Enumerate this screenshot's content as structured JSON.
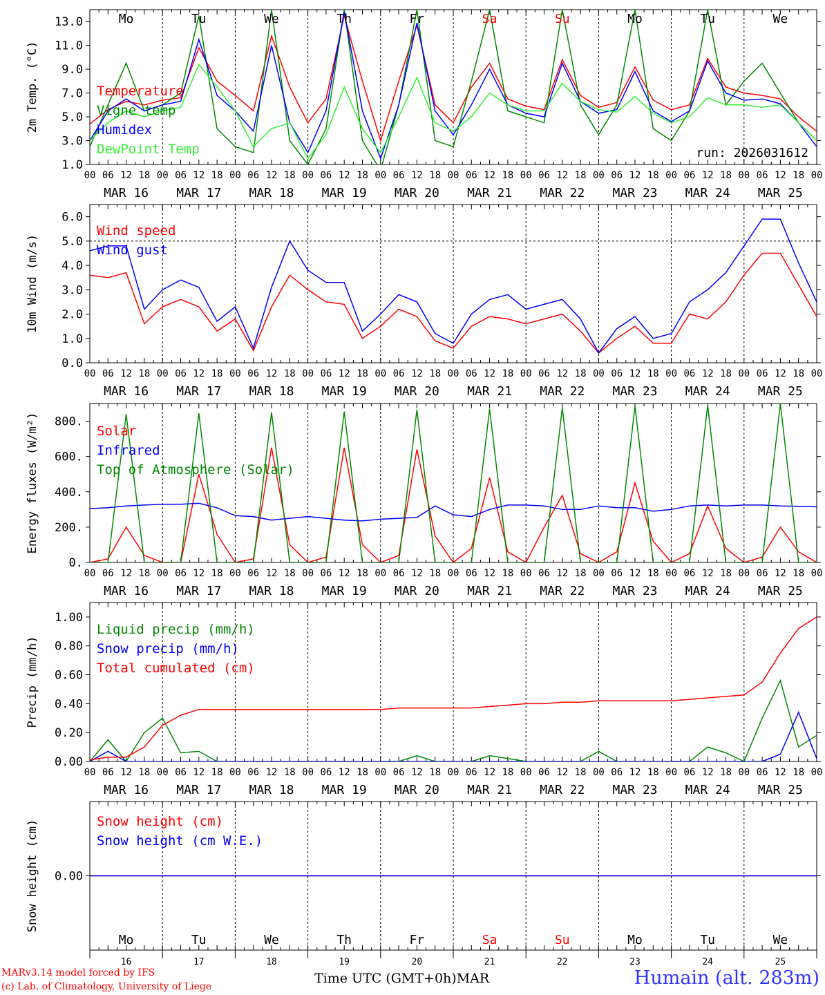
{
  "chart_data": [
    {
      "type": "line",
      "id": "temp",
      "ylabel": "2m Temp. (°C)",
      "ylim": [
        1.0,
        14.0
      ],
      "yticks": [
        "1.0",
        "3.0",
        "5.0",
        "7.0",
        "9.0",
        "11.0",
        "13.0"
      ],
      "ytick_values": [
        1,
        3,
        5,
        7,
        9,
        11,
        13
      ],
      "annotation": "run: 2026031612",
      "day_names": [
        "Mo",
        "Tu",
        "We",
        "Th",
        "Fr",
        "Sa",
        "Su",
        "Mo",
        "Tu",
        "We"
      ],
      "x_hours": [
        0,
        6,
        12,
        18,
        24,
        30,
        36,
        42,
        48,
        54,
        60,
        66,
        72,
        78,
        84,
        90,
        96,
        102,
        108,
        114,
        120,
        126,
        132,
        138,
        144,
        150,
        156,
        162,
        168,
        174,
        180,
        186,
        192,
        198,
        204,
        210,
        216,
        222,
        228,
        234,
        240
      ],
      "series": [
        {
          "name": "Temperature",
          "color": "#ff0000",
          "values": [
            4.4,
            5.6,
            6.3,
            6.0,
            6.4,
            6.6,
            10.8,
            8.0,
            6.8,
            5.5,
            11.8,
            7.5,
            4.5,
            6.5,
            13.5,
            8.0,
            3.0,
            8.0,
            12.7,
            6.0,
            4.5,
            7.5,
            9.5,
            6.5,
            5.9,
            5.6,
            9.8,
            6.8,
            5.8,
            6.2,
            9.2,
            6.4,
            5.6,
            6.0,
            9.9,
            7.5,
            7.0,
            6.8,
            6.5,
            5.0,
            3.8
          ]
        },
        {
          "name": "Vigne temp",
          "color": "#008800",
          "values": [
            2.5,
            6.0,
            9.5,
            5.5,
            6.0,
            7.0,
            13.5,
            4.0,
            2.5,
            2.0,
            14.0,
            3.0,
            1.0,
            4.0,
            14.0,
            3.0,
            0.5,
            6.0,
            14.0,
            3.0,
            2.5,
            8.0,
            14.0,
            5.5,
            5.0,
            4.5,
            14.0,
            6.0,
            3.5,
            6.0,
            14.0,
            4.0,
            3.0,
            5.5,
            14.0,
            6.0,
            8.0,
            9.5,
            7.0,
            4.5,
            3.0
          ]
        },
        {
          "name": "Humidex",
          "color": "#0000ff",
          "values": [
            3.0,
            5.5,
            6.5,
            5.5,
            6.0,
            6.3,
            11.5,
            6.8,
            5.5,
            3.8,
            11.0,
            4.5,
            2.0,
            5.5,
            13.8,
            5.5,
            1.5,
            6.0,
            12.9,
            5.5,
            3.5,
            6.0,
            9.0,
            6.0,
            5.3,
            5.0,
            9.5,
            6.3,
            5.3,
            5.6,
            8.8,
            5.5,
            4.6,
            5.5,
            9.7,
            7.0,
            6.4,
            6.5,
            6.1,
            4.5,
            2.5
          ]
        },
        {
          "name": "DewPoint Temp",
          "color": "#33ee33",
          "values": [
            3.0,
            4.5,
            5.5,
            5.0,
            5.5,
            5.8,
            9.4,
            7.5,
            5.5,
            2.5,
            4.0,
            4.5,
            1.5,
            3.5,
            7.5,
            4.0,
            2.0,
            5.0,
            8.3,
            4.5,
            3.8,
            5.0,
            7.0,
            6.0,
            5.5,
            5.5,
            7.8,
            6.3,
            5.6,
            5.4,
            6.7,
            5.3,
            4.5,
            5.0,
            6.6,
            6.0,
            6.0,
            5.8,
            6.0,
            4.5,
            3.0
          ]
        }
      ]
    },
    {
      "type": "line",
      "id": "wind",
      "ylabel": "10m Wind (m/s)",
      "ylim": [
        0.0,
        6.5
      ],
      "yticks": [
        "0.0",
        "1.0",
        "2.0",
        "3.0",
        "4.0",
        "5.0",
        "6.0"
      ],
      "ytick_values": [
        0,
        1,
        2,
        3,
        4,
        5,
        6
      ],
      "reference_line": 5.0,
      "x_hours": [
        0,
        6,
        12,
        18,
        24,
        30,
        36,
        42,
        48,
        54,
        60,
        66,
        72,
        78,
        84,
        90,
        96,
        102,
        108,
        114,
        120,
        126,
        132,
        138,
        144,
        150,
        156,
        162,
        168,
        174,
        180,
        186,
        192,
        198,
        204,
        210,
        216,
        222,
        228,
        234,
        240
      ],
      "series": [
        {
          "name": "Wind speed",
          "color": "#ff0000",
          "values": [
            3.6,
            3.5,
            3.7,
            1.6,
            2.3,
            2.6,
            2.3,
            1.3,
            1.8,
            0.5,
            2.3,
            3.6,
            3.0,
            2.5,
            2.4,
            1.0,
            1.5,
            2.2,
            1.9,
            0.9,
            0.6,
            1.5,
            1.9,
            1.8,
            1.6,
            1.8,
            2.0,
            1.3,
            0.4,
            1.0,
            1.5,
            0.8,
            0.8,
            2.0,
            1.8,
            2.5,
            3.6,
            4.5,
            4.5,
            3.2,
            1.9
          ]
        },
        {
          "name": "Wind gust",
          "color": "#0000ff",
          "values": [
            4.6,
            4.8,
            4.8,
            2.2,
            3.0,
            3.4,
            3.1,
            1.7,
            2.3,
            0.6,
            3.1,
            5.0,
            3.8,
            3.3,
            3.3,
            1.3,
            2.0,
            2.8,
            2.5,
            1.2,
            0.8,
            2.0,
            2.6,
            2.8,
            2.2,
            2.4,
            2.6,
            1.8,
            0.4,
            1.4,
            1.9,
            1.0,
            1.2,
            2.5,
            3.0,
            3.7,
            4.8,
            5.9,
            5.9,
            4.1,
            2.5
          ]
        }
      ]
    },
    {
      "type": "line",
      "id": "energy",
      "ylabel": "Energy fluxes (W/m²)",
      "ylim": [
        0,
        900
      ],
      "yticks": [
        "0.",
        "200.",
        "400.",
        "600.",
        "800."
      ],
      "ytick_values": [
        0,
        200,
        400,
        600,
        800
      ],
      "x_hours": [
        0,
        6,
        12,
        18,
        24,
        30,
        36,
        42,
        48,
        54,
        60,
        66,
        72,
        78,
        84,
        90,
        96,
        102,
        108,
        114,
        120,
        126,
        132,
        138,
        144,
        150,
        156,
        162,
        168,
        174,
        180,
        186,
        192,
        198,
        204,
        210,
        216,
        222,
        228,
        234,
        240
      ],
      "series": [
        {
          "name": "Solar",
          "color": "#ff0000",
          "values": [
            0,
            20,
            200,
            40,
            0,
            0,
            500,
            160,
            0,
            20,
            650,
            100,
            0,
            30,
            650,
            100,
            0,
            40,
            640,
            150,
            0,
            80,
            480,
            60,
            0,
            200,
            380,
            50,
            0,
            60,
            450,
            120,
            0,
            50,
            320,
            80,
            0,
            30,
            200,
            60,
            0
          ]
        },
        {
          "name": "Infrared",
          "color": "#0000ff",
          "values": [
            305,
            310,
            320,
            325,
            330,
            330,
            335,
            310,
            265,
            260,
            240,
            250,
            260,
            250,
            240,
            235,
            245,
            250,
            255,
            320,
            270,
            260,
            300,
            325,
            325,
            320,
            300,
            300,
            320,
            310,
            310,
            290,
            300,
            320,
            325,
            320,
            325,
            325,
            320,
            318,
            315
          ]
        },
        {
          "name": "Top of Atmosphere (Solar)",
          "color": "#008800",
          "values": [
            0,
            0,
            840,
            0,
            0,
            0,
            845,
            0,
            0,
            0,
            850,
            0,
            0,
            0,
            855,
            0,
            0,
            0,
            865,
            0,
            0,
            0,
            870,
            0,
            0,
            0,
            875,
            0,
            0,
            0,
            885,
            0,
            0,
            0,
            890,
            0,
            0,
            0,
            900,
            0,
            0
          ]
        }
      ]
    },
    {
      "type": "line",
      "id": "precip",
      "ylabel": "Precip (mm/h)",
      "ylim": [
        0.0,
        1.1
      ],
      "yticks": [
        "0.00",
        "0.20",
        "0.40",
        "0.60",
        "0.80",
        "1.00"
      ],
      "ytick_values": [
        0,
        0.2,
        0.4,
        0.6,
        0.8,
        1.0
      ],
      "x_hours": [
        0,
        6,
        12,
        18,
        24,
        30,
        36,
        42,
        48,
        54,
        60,
        66,
        72,
        78,
        84,
        90,
        96,
        102,
        108,
        114,
        120,
        126,
        132,
        138,
        144,
        150,
        156,
        162,
        168,
        174,
        180,
        186,
        192,
        198,
        204,
        210,
        216,
        222,
        228,
        234,
        240
      ],
      "series": [
        {
          "name": "Liquid precip (mm/h)",
          "color": "#008800",
          "values": [
            0.0,
            0.15,
            0.0,
            0.2,
            0.3,
            0.06,
            0.07,
            0.0,
            0.0,
            0.0,
            0.0,
            0.0,
            0.0,
            0.0,
            0.0,
            0.0,
            0.0,
            0.0,
            0.04,
            0.0,
            0.0,
            0.0,
            0.04,
            0.02,
            0.0,
            0.0,
            0.0,
            0.0,
            0.07,
            0.0,
            0.0,
            0.0,
            0.0,
            0.0,
            0.1,
            0.06,
            0.0,
            0.3,
            0.56,
            0.1,
            0.18
          ]
        },
        {
          "name": "Snow precip (mm/h)",
          "color": "#0000ff",
          "values": [
            0,
            0.07,
            0,
            0,
            0,
            0,
            0,
            0,
            0,
            0,
            0,
            0,
            0,
            0,
            0,
            0,
            0,
            0,
            0,
            0,
            0,
            0,
            0,
            0,
            0,
            0,
            0,
            0,
            0,
            0,
            0,
            0,
            0,
            0,
            0,
            0,
            0,
            0,
            0.05,
            0.34,
            0.02
          ]
        },
        {
          "name": "Total cumulated (cm)",
          "color": "#ff0000",
          "values": [
            0.01,
            0.03,
            0.03,
            0.1,
            0.25,
            0.32,
            0.36,
            0.36,
            0.36,
            0.36,
            0.36,
            0.36,
            0.36,
            0.36,
            0.36,
            0.36,
            0.36,
            0.37,
            0.37,
            0.37,
            0.37,
            0.37,
            0.38,
            0.39,
            0.4,
            0.4,
            0.41,
            0.41,
            0.42,
            0.42,
            0.42,
            0.42,
            0.42,
            0.43,
            0.44,
            0.45,
            0.46,
            0.55,
            0.75,
            0.92,
            1.0
          ]
        }
      ]
    },
    {
      "type": "line",
      "id": "snow",
      "ylabel": "Snow height (cm)",
      "ylim": [
        -1,
        1
      ],
      "yticks": [
        "0.00"
      ],
      "ytick_values": [
        0
      ],
      "x_hours": [
        0,
        240
      ],
      "series": [
        {
          "name": "Snow height (cm)",
          "color": "#ff0000",
          "values": [
            0,
            0
          ]
        },
        {
          "name": "Snow height (cm W.E.)",
          "color": "#0000ff",
          "values": [
            0,
            0
          ]
        }
      ]
    }
  ],
  "axes": {
    "hour_ticks": [
      "00",
      "06",
      "12",
      "18"
    ],
    "date_labels": [
      "MAR 16",
      "MAR 17",
      "MAR 18",
      "MAR 19",
      "MAR 20",
      "MAR 21",
      "MAR 22",
      "MAR 23",
      "MAR 24",
      "MAR 25"
    ],
    "day_names": [
      "Mo",
      "Tu",
      "We",
      "Th",
      "Fr",
      "Sa",
      "Su",
      "Mo",
      "Tu",
      "We"
    ],
    "day_numbers": [
      "16",
      "17",
      "18",
      "19",
      "20",
      "21",
      "22",
      "23",
      "24",
      "25"
    ],
    "weekend_color": "#ff0000",
    "x_title": "Time UTC (GMT+0h)MAR"
  },
  "footer": {
    "credit_line1": "MARv3.14 model forced by IFS",
    "credit_line2": "(c) Lab. of Climatology, University of Liege",
    "location": "Humain (alt. 283m)"
  }
}
